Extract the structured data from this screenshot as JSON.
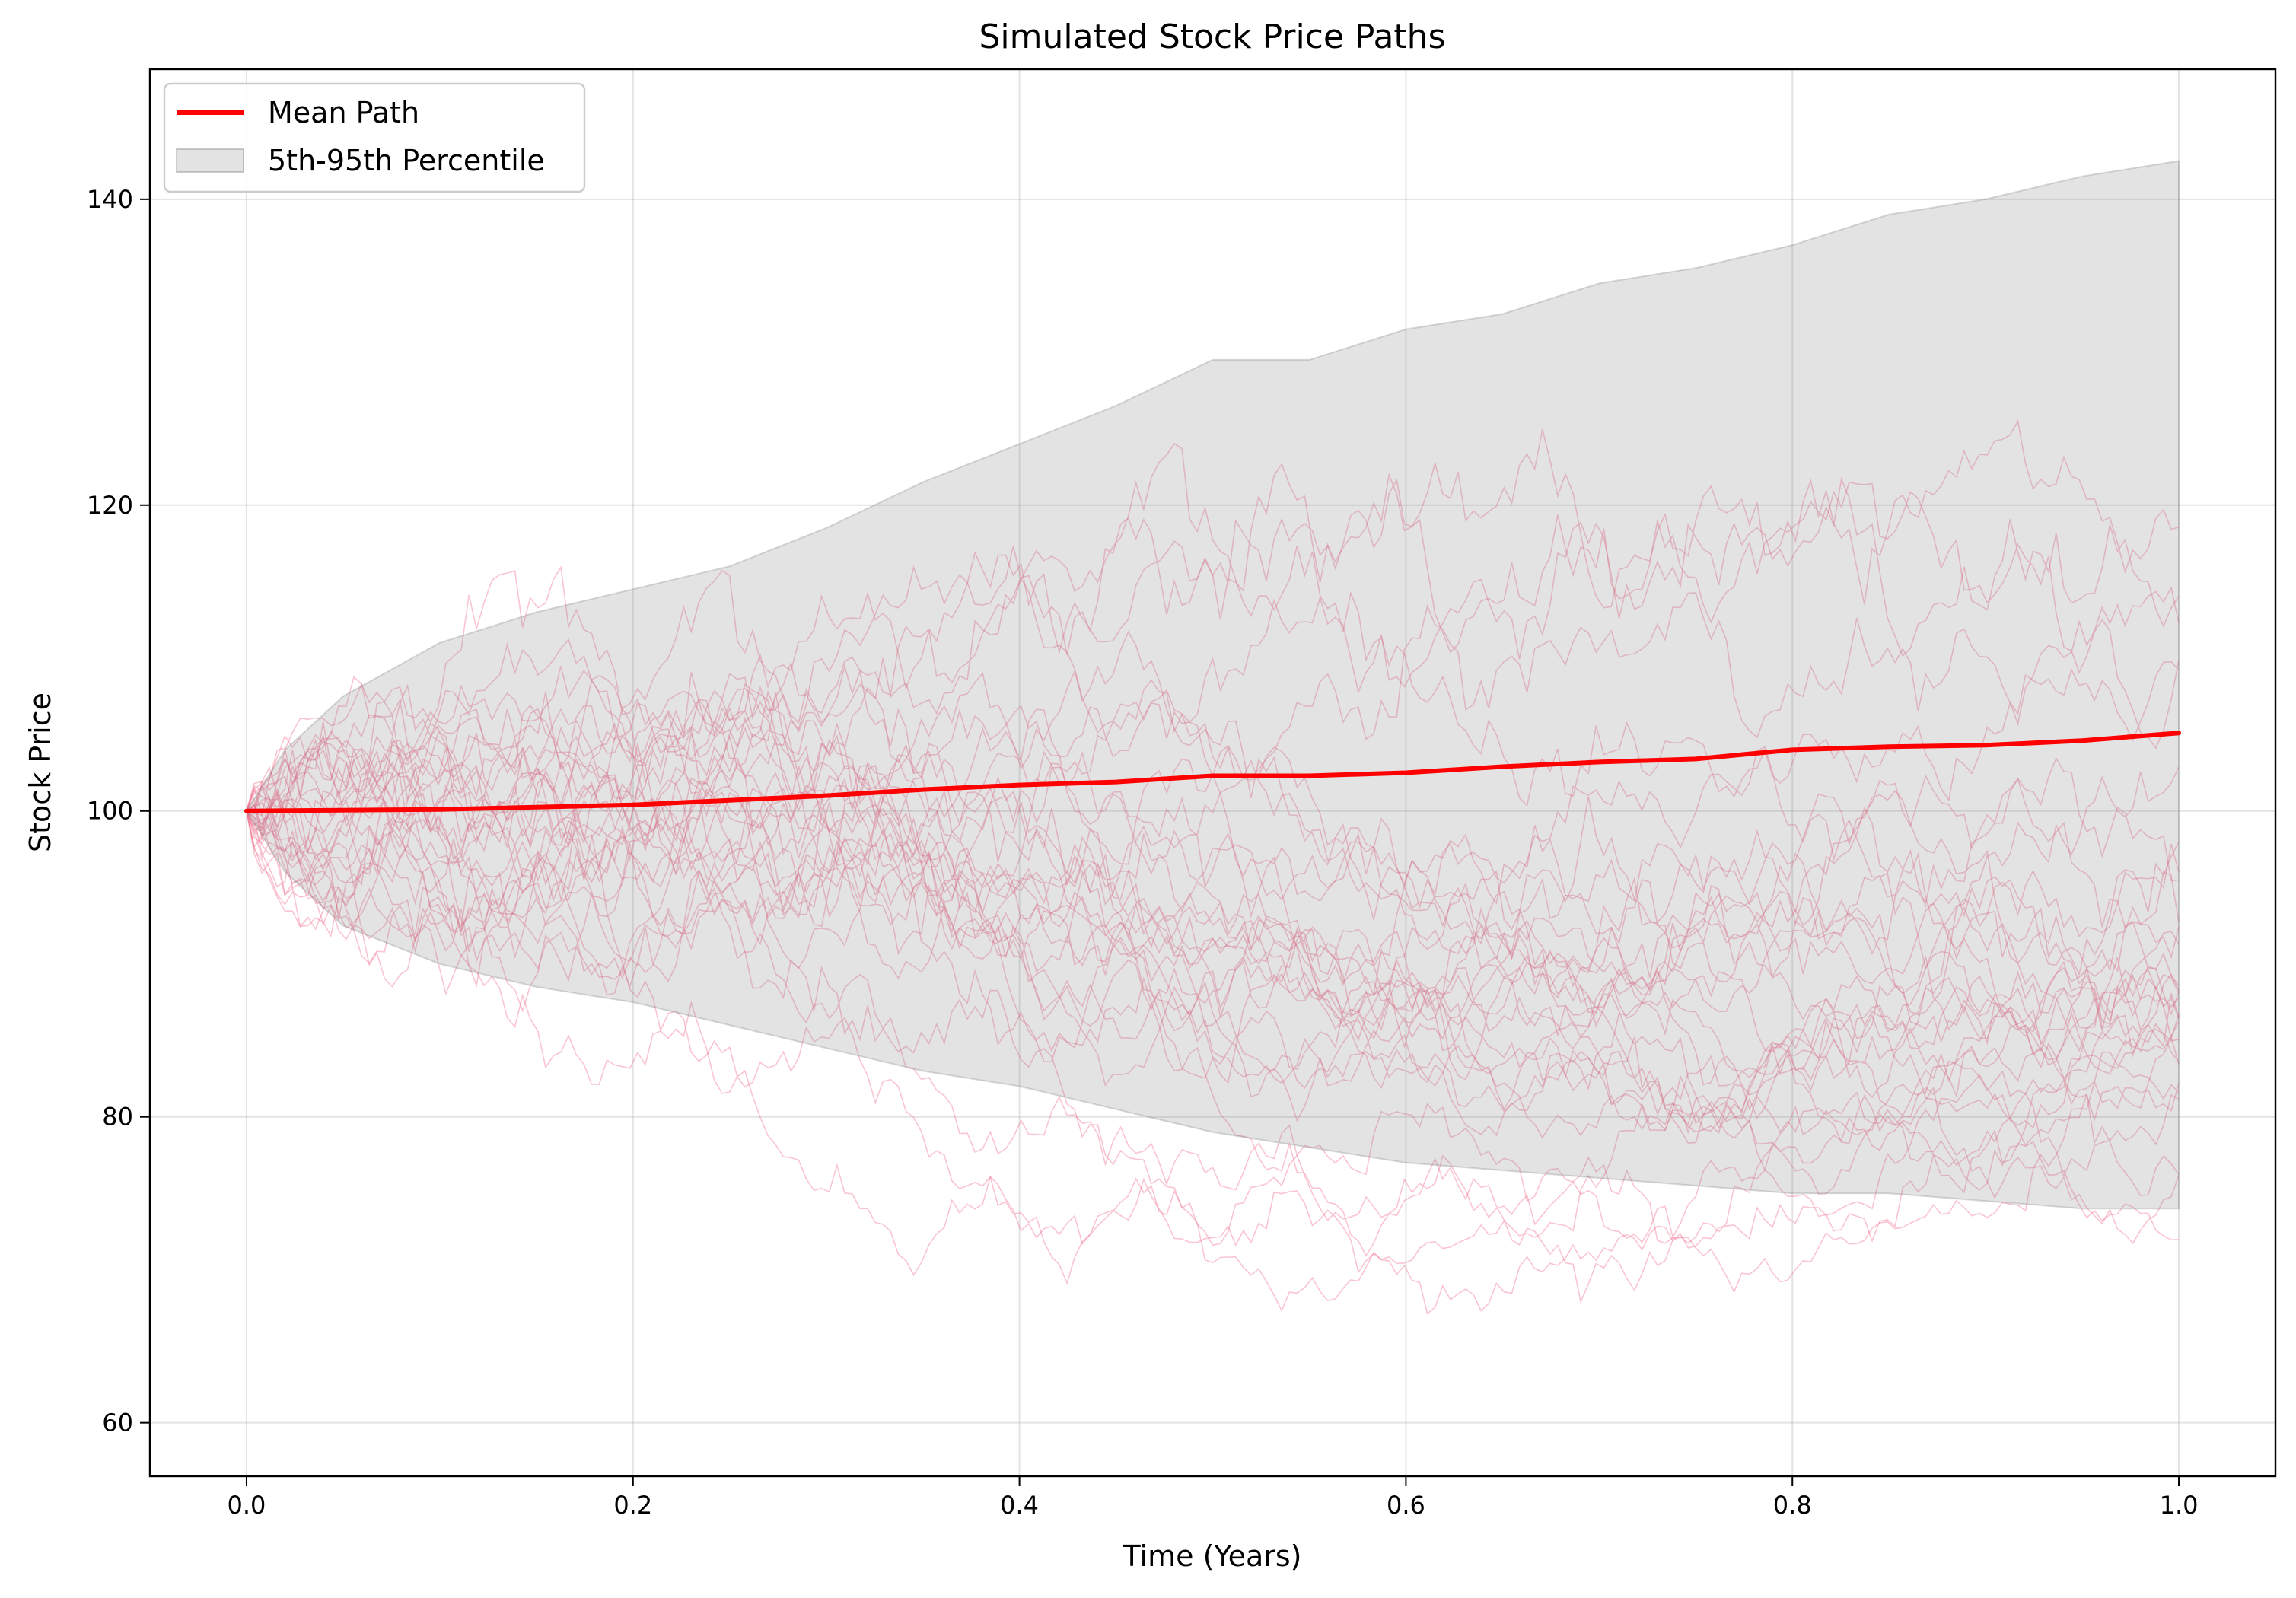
{
  "chart_data": {
    "type": "line",
    "title": "Simulated Stock Price Paths",
    "xlabel": "Time (Years)",
    "ylabel": "Stock Price",
    "xlim": [
      -0.05,
      1.05
    ],
    "ylim": [
      56.5,
      148.5
    ],
    "xticks": [
      0.0,
      0.2,
      0.4,
      0.6,
      0.8,
      1.0
    ],
    "xtick_labels": [
      "0.0",
      "0.2",
      "0.4",
      "0.6",
      "0.8",
      "1.0"
    ],
    "yticks": [
      60,
      80,
      100,
      120,
      140
    ],
    "ytick_labels": [
      "60",
      "80",
      "100",
      "120",
      "140"
    ],
    "grid": true,
    "legend_position": "top-left",
    "legend": [
      {
        "label": "Mean Path",
        "kind": "line",
        "color": "#ff0000"
      },
      {
        "label": "5th-95th Percentile",
        "kind": "band",
        "color": "#808080"
      }
    ],
    "mean_path": {
      "name": "Mean Path",
      "color": "#ff0000",
      "x": [
        0.0,
        0.1,
        0.2,
        0.25,
        0.3,
        0.35,
        0.4,
        0.45,
        0.5,
        0.55,
        0.6,
        0.65,
        0.7,
        0.75,
        0.8,
        0.85,
        0.9,
        0.95,
        1.0
      ],
      "y": [
        100.0,
        100.1,
        100.4,
        100.7,
        101.0,
        101.4,
        101.7,
        101.9,
        102.3,
        102.3,
        102.5,
        102.9,
        103.2,
        103.4,
        104.0,
        104.2,
        104.3,
        104.6,
        105.1
      ]
    },
    "percentile_band": {
      "name": "5th-95th Percentile",
      "color": "#808080",
      "x": [
        0.0,
        0.02,
        0.05,
        0.1,
        0.15,
        0.2,
        0.25,
        0.3,
        0.35,
        0.4,
        0.45,
        0.5,
        0.55,
        0.6,
        0.65,
        0.7,
        0.75,
        0.8,
        0.85,
        0.9,
        0.95,
        1.0
      ],
      "p95": [
        100.0,
        104.0,
        107.5,
        111.0,
        113.0,
        114.5,
        116.0,
        118.5,
        121.5,
        124.0,
        126.5,
        129.5,
        129.5,
        131.5,
        132.5,
        134.5,
        135.5,
        137.0,
        139.0,
        140.0,
        141.5,
        142.5
      ],
      "p5": [
        100.0,
        96.0,
        92.5,
        90.0,
        88.5,
        87.5,
        86.0,
        84.5,
        83.0,
        82.0,
        80.5,
        79.0,
        78.0,
        77.0,
        76.5,
        76.0,
        75.5,
        75.0,
        75.0,
        74.5,
        74.0,
        74.0
      ]
    },
    "simulated_paths": {
      "count": 30,
      "color": "#f06e8c",
      "x": [
        0.0,
        0.05,
        0.1,
        0.15,
        0.2,
        0.25,
        0.3,
        0.35,
        0.4,
        0.45,
        0.5,
        0.55,
        0.6,
        0.65,
        0.7,
        0.75,
        0.8,
        0.85,
        0.9,
        0.95,
        1.0
      ]
    }
  }
}
